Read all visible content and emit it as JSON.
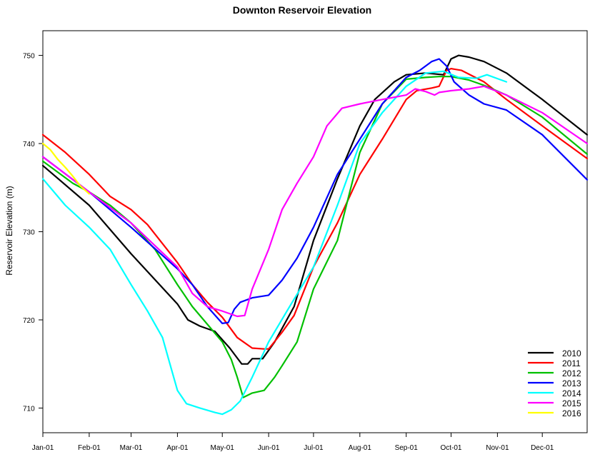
{
  "chart_data": {
    "type": "line",
    "title": "Downton Reservoir Elevation",
    "xlabel": "",
    "ylabel": "Reservoir Elevation (m)",
    "xlim": [
      0,
      364
    ],
    "ylim": [
      707.2,
      752.8
    ],
    "x_ticks": [
      {
        "label": "Jan-01",
        "day": 0
      },
      {
        "label": "Feb-01",
        "day": 31
      },
      {
        "label": "Mar-01",
        "day": 59
      },
      {
        "label": "Apr-01",
        "day": 90
      },
      {
        "label": "May-01",
        "day": 120
      },
      {
        "label": "Jun-01",
        "day": 151
      },
      {
        "label": "Jul-01",
        "day": 181
      },
      {
        "label": "Aug-01",
        "day": 212
      },
      {
        "label": "Sep-01",
        "day": 243
      },
      {
        "label": "Oct-01",
        "day": 273
      },
      {
        "label": "Nov-01",
        "day": 304
      },
      {
        "label": "Dec-01",
        "day": 334
      }
    ],
    "y_ticks": [
      710,
      720,
      730,
      740,
      750
    ],
    "legend_position": "bottom-right",
    "series": [
      {
        "name": "2010",
        "color": "#000000",
        "points": [
          [
            0,
            737.5
          ],
          [
            31,
            733
          ],
          [
            59,
            727.5
          ],
          [
            90,
            721.8
          ],
          [
            97,
            720
          ],
          [
            105,
            719.3
          ],
          [
            115,
            718.7
          ],
          [
            125,
            716.8
          ],
          [
            133,
            715
          ],
          [
            137,
            715
          ],
          [
            140,
            715.6
          ],
          [
            147,
            715.6
          ],
          [
            155,
            717.5
          ],
          [
            168,
            721.5
          ],
          [
            181,
            729
          ],
          [
            197,
            736
          ],
          [
            212,
            742
          ],
          [
            222,
            745
          ],
          [
            235,
            747
          ],
          [
            243,
            747.8
          ],
          [
            256,
            748
          ],
          [
            268,
            747.8
          ],
          [
            273,
            749.6
          ],
          [
            278,
            750
          ],
          [
            285,
            749.8
          ],
          [
            295,
            749.3
          ],
          [
            310,
            748
          ],
          [
            334,
            745
          ],
          [
            364,
            741
          ]
        ]
      },
      {
        "name": "2011",
        "color": "#ff0000",
        "points": [
          [
            0,
            741
          ],
          [
            15,
            739
          ],
          [
            31,
            736.5
          ],
          [
            45,
            734
          ],
          [
            59,
            732.5
          ],
          [
            70,
            730.8
          ],
          [
            90,
            726.5
          ],
          [
            100,
            724
          ],
          [
            110,
            722
          ],
          [
            120,
            720.3
          ],
          [
            130,
            718
          ],
          [
            140,
            716.8
          ],
          [
            148,
            716.7
          ],
          [
            151,
            716.7
          ],
          [
            160,
            718.6
          ],
          [
            168,
            720.5
          ],
          [
            181,
            726
          ],
          [
            197,
            731
          ],
          [
            212,
            736.5
          ],
          [
            227,
            740.5
          ],
          [
            243,
            745
          ],
          [
            250,
            746
          ],
          [
            260,
            746.3
          ],
          [
            265,
            746.5
          ],
          [
            270,
            748.3
          ],
          [
            273,
            748.5
          ],
          [
            280,
            748.3
          ],
          [
            295,
            747
          ],
          [
            310,
            745
          ],
          [
            334,
            742
          ],
          [
            364,
            738.3
          ]
        ]
      },
      {
        "name": "2012",
        "color": "#00c000",
        "points": [
          [
            0,
            738
          ],
          [
            20,
            735.5
          ],
          [
            31,
            734.5
          ],
          [
            45,
            733
          ],
          [
            59,
            731
          ],
          [
            75,
            728
          ],
          [
            90,
            724
          ],
          [
            100,
            721.5
          ],
          [
            110,
            719.5
          ],
          [
            120,
            717.5
          ],
          [
            126,
            715.5
          ],
          [
            130,
            713.5
          ],
          [
            134,
            711.2
          ],
          [
            140,
            711.7
          ],
          [
            148,
            712
          ],
          [
            155,
            713.5
          ],
          [
            160,
            714.8
          ],
          [
            170,
            717.5
          ],
          [
            181,
            723.5
          ],
          [
            197,
            729
          ],
          [
            212,
            739
          ],
          [
            227,
            744.5
          ],
          [
            243,
            747.3
          ],
          [
            256,
            747.5
          ],
          [
            265,
            747.6
          ],
          [
            273,
            747.6
          ],
          [
            285,
            747.2
          ],
          [
            295,
            746.6
          ],
          [
            310,
            745.5
          ],
          [
            334,
            743
          ],
          [
            364,
            738.8
          ]
        ]
      },
      {
        "name": "2013",
        "color": "#0000ff",
        "points": [
          [
            0,
            738.5
          ],
          [
            31,
            734.5
          ],
          [
            59,
            730.5
          ],
          [
            90,
            725.8
          ],
          [
            100,
            724
          ],
          [
            110,
            721.5
          ],
          [
            120,
            719.6
          ],
          [
            124,
            719.7
          ],
          [
            128,
            721.2
          ],
          [
            132,
            722
          ],
          [
            140,
            722.5
          ],
          [
            151,
            722.8
          ],
          [
            160,
            724.5
          ],
          [
            170,
            727
          ],
          [
            181,
            730.5
          ],
          [
            197,
            736.5
          ],
          [
            212,
            740.5
          ],
          [
            227,
            744.5
          ],
          [
            243,
            747.5
          ],
          [
            252,
            748.3
          ],
          [
            260,
            749.3
          ],
          [
            265,
            749.6
          ],
          [
            270,
            748.8
          ],
          [
            275,
            747
          ],
          [
            285,
            745.5
          ],
          [
            295,
            744.5
          ],
          [
            310,
            743.8
          ],
          [
            334,
            741
          ],
          [
            364,
            735.9
          ]
        ]
      },
      {
        "name": "2014",
        "color": "#00ffff",
        "points": [
          [
            0,
            736
          ],
          [
            15,
            733
          ],
          [
            31,
            730.5
          ],
          [
            45,
            728
          ],
          [
            59,
            724
          ],
          [
            70,
            721
          ],
          [
            80,
            718
          ],
          [
            85,
            715
          ],
          [
            90,
            712
          ],
          [
            96,
            710.5
          ],
          [
            105,
            710
          ],
          [
            115,
            709.5
          ],
          [
            120,
            709.3
          ],
          [
            126,
            709.8
          ],
          [
            132,
            710.8
          ],
          [
            140,
            713.5
          ],
          [
            151,
            717.5
          ],
          [
            165,
            721.5
          ],
          [
            181,
            726
          ],
          [
            197,
            733
          ],
          [
            212,
            740
          ],
          [
            227,
            743.5
          ],
          [
            243,
            746.5
          ],
          [
            256,
            748
          ],
          [
            268,
            748.2
          ],
          [
            278,
            747.5
          ],
          [
            290,
            747.4
          ],
          [
            297,
            747.8
          ],
          [
            305,
            747.3
          ],
          [
            310,
            747
          ]
        ]
      },
      {
        "name": "2015",
        "color": "#ff00ff",
        "points": [
          [
            0,
            738.5
          ],
          [
            31,
            734.5
          ],
          [
            59,
            731
          ],
          [
            90,
            726
          ],
          [
            100,
            723
          ],
          [
            110,
            721.5
          ],
          [
            120,
            721
          ],
          [
            130,
            720.4
          ],
          [
            135,
            720.5
          ],
          [
            140,
            723.5
          ],
          [
            151,
            728
          ],
          [
            160,
            732.5
          ],
          [
            170,
            735.5
          ],
          [
            181,
            738.5
          ],
          [
            190,
            742
          ],
          [
            200,
            744
          ],
          [
            212,
            744.5
          ],
          [
            227,
            745
          ],
          [
            243,
            745.5
          ],
          [
            249,
            746.2
          ],
          [
            256,
            745.9
          ],
          [
            262,
            745.5
          ],
          [
            265,
            745.8
          ],
          [
            273,
            746
          ],
          [
            285,
            746.2
          ],
          [
            295,
            746.5
          ],
          [
            310,
            745.5
          ],
          [
            334,
            743.5
          ],
          [
            364,
            740
          ]
        ]
      },
      {
        "name": "2016",
        "color": "#ffff00",
        "points": [
          [
            0,
            740
          ],
          [
            5,
            739.3
          ],
          [
            10,
            738.2
          ],
          [
            15,
            737.3
          ],
          [
            20,
            736.3
          ],
          [
            25,
            735.2
          ],
          [
            31,
            734.3
          ]
        ]
      }
    ]
  }
}
